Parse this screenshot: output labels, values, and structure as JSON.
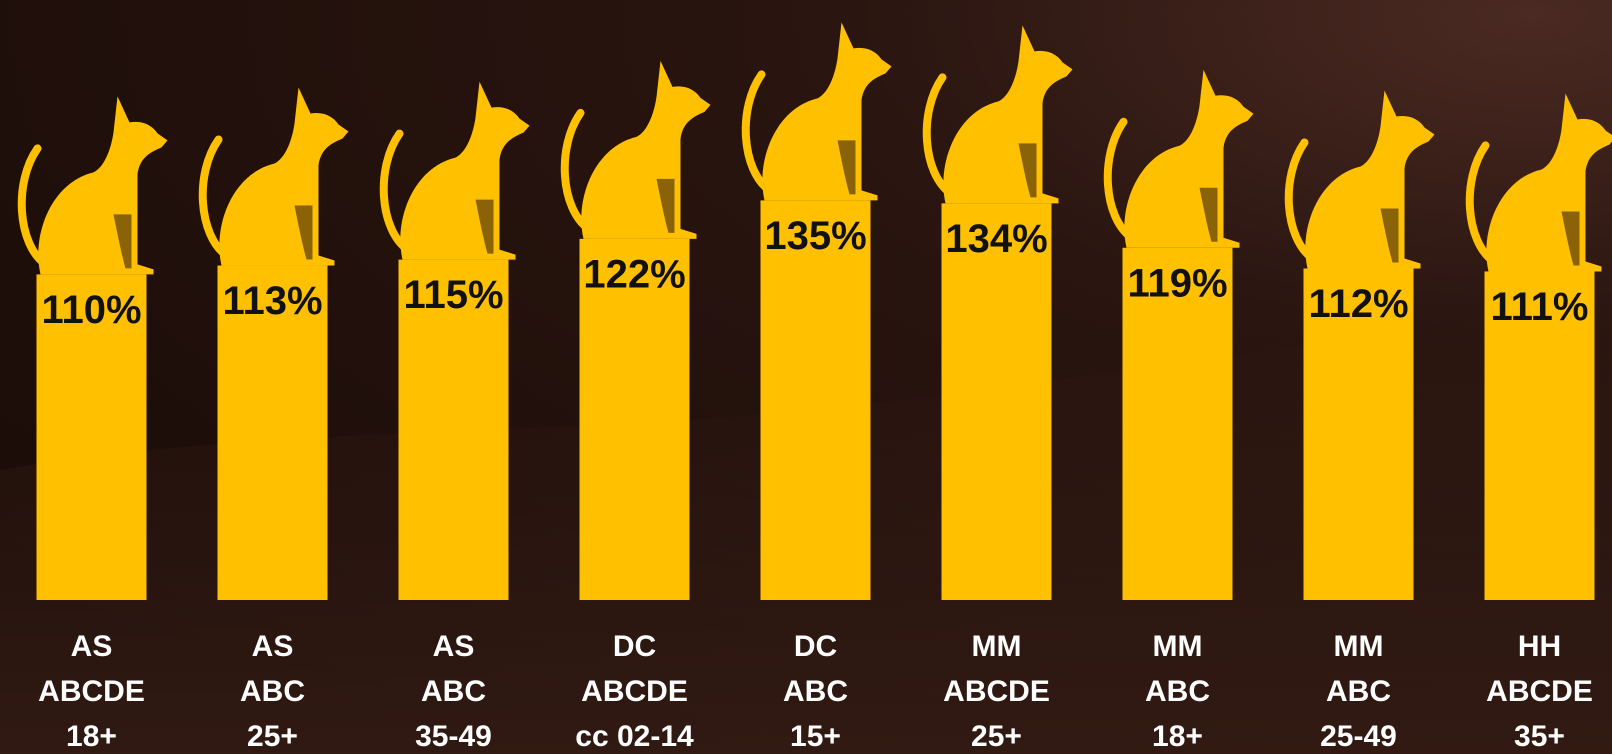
{
  "chart_data": {
    "type": "bar",
    "categories": [
      [
        "AS",
        "ABCDE",
        "18+"
      ],
      [
        "AS",
        "ABC",
        "25+"
      ],
      [
        "AS",
        "ABC",
        "35-49"
      ],
      [
        "DC",
        "ABCDE",
        "cc 02-14"
      ],
      [
        "DC",
        "ABC",
        "15+"
      ],
      [
        "MM",
        "ABCDE",
        "25+"
      ],
      [
        "MM",
        "ABC",
        "18+"
      ],
      [
        "MM",
        "ABC",
        "25-49"
      ],
      [
        "HH",
        "ABCDE",
        "35+"
      ]
    ],
    "values": [
      110,
      113,
      115,
      122,
      135,
      134,
      119,
      112,
      111
    ],
    "value_labels": [
      "110%",
      "113%",
      "115%",
      "122%",
      "135%",
      "134%",
      "119%",
      "112%",
      "111%"
    ],
    "color": "#FFC000"
  }
}
